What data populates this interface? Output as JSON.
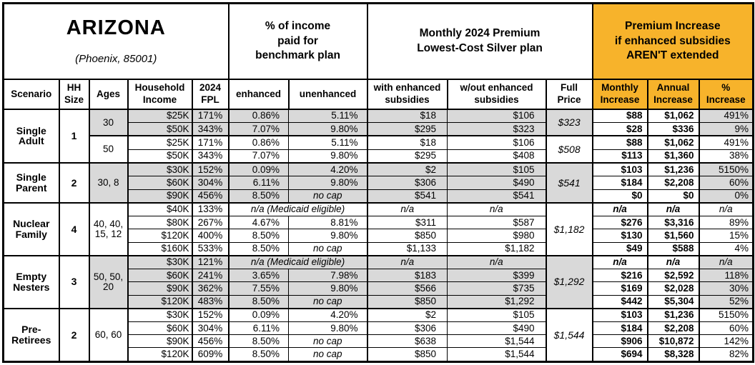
{
  "title": {
    "state": "ARIZONA",
    "subtitle": "(Phoenix, 85001)"
  },
  "groups": {
    "benchmark": "% of income\npaid for\nbenchmark plan",
    "premium": "Monthly 2024 Premium\nLowest-Cost Silver plan",
    "increase": "Premium Increase\nif enhanced subsidies\nAREN'T extended"
  },
  "columns": {
    "scenario": "Scenario",
    "hh_size": "HH\nSize",
    "ages": "Ages",
    "income": "Household\nIncome",
    "fpl": "2024\nFPL",
    "enhanced": "enhanced",
    "unenhanced": "unenhanced",
    "with_sub": "with enhanced\nsubsidies",
    "without_sub": "w/out enhanced\nsubsidies",
    "full_price": "Full\nPrice",
    "monthly": "Monthly\nIncrease",
    "annual": "Annual\nIncrease",
    "pct": "%\nIncrease"
  },
  "colors": {
    "accent_orange": "#F7B32B",
    "shade_gray": "#D9D9D9",
    "border": "#000000"
  },
  "blocks": [
    {
      "scenario": "Single\nAdult",
      "hh_size": "1",
      "sub_blocks": [
        {
          "ages": "30",
          "shaded": true,
          "full_price": "$323",
          "rows": [
            {
              "income": "$25K",
              "fpl": "171%",
              "enhanced": "0.86%",
              "unenhanced": "5.11%",
              "with_sub": "$18",
              "without_sub": "$106",
              "monthly": "$88",
              "annual": "$1,062",
              "pct": "491%"
            },
            {
              "income": "$50K",
              "fpl": "343%",
              "enhanced": "7.07%",
              "unenhanced": "9.80%",
              "with_sub": "$295",
              "without_sub": "$323",
              "monthly": "$28",
              "annual": "$336",
              "pct": "9%"
            }
          ]
        },
        {
          "ages": "50",
          "shaded": false,
          "full_price": "$508",
          "rows": [
            {
              "income": "$25K",
              "fpl": "171%",
              "enhanced": "0.86%",
              "unenhanced": "5.11%",
              "with_sub": "$18",
              "without_sub": "$106",
              "monthly": "$88",
              "annual": "$1,062",
              "pct": "491%"
            },
            {
              "income": "$50K",
              "fpl": "343%",
              "enhanced": "7.07%",
              "unenhanced": "9.80%",
              "with_sub": "$295",
              "without_sub": "$408",
              "monthly": "$113",
              "annual": "$1,360",
              "pct": "38%"
            }
          ]
        }
      ]
    },
    {
      "scenario": "Single\nParent",
      "hh_size": "2",
      "sub_blocks": [
        {
          "ages": "30, 8",
          "shaded": true,
          "full_price": "$541",
          "rows": [
            {
              "income": "$30K",
              "fpl": "152%",
              "enhanced": "0.09%",
              "unenhanced": "4.20%",
              "with_sub": "$2",
              "without_sub": "$105",
              "monthly": "$103",
              "annual": "$1,236",
              "pct": "5150%"
            },
            {
              "income": "$60K",
              "fpl": "304%",
              "enhanced": "6.11%",
              "unenhanced": "9.80%",
              "with_sub": "$306",
              "without_sub": "$490",
              "monthly": "$184",
              "annual": "$2,208",
              "pct": "60%"
            },
            {
              "income": "$90K",
              "fpl": "456%",
              "enhanced": "8.50%",
              "unenhanced": "no cap",
              "with_sub": "$541",
              "without_sub": "$541",
              "monthly": "$0",
              "annual": "$0",
              "pct": "0%"
            }
          ]
        }
      ]
    },
    {
      "scenario": "Nuclear\nFamily",
      "hh_size": "4",
      "sub_blocks": [
        {
          "ages": "40, 40,\n15, 12",
          "shaded": false,
          "full_price": "$1,182",
          "rows": [
            {
              "income": "$40K",
              "fpl": "133%",
              "medicaid": "n/a (Medicaid eligible)",
              "with_sub": "n/a",
              "without_sub": "n/a",
              "monthly": "n/a",
              "annual": "n/a",
              "pct": "n/a"
            },
            {
              "income": "$80K",
              "fpl": "267%",
              "enhanced": "4.67%",
              "unenhanced": "8.81%",
              "with_sub": "$311",
              "without_sub": "$587",
              "monthly": "$276",
              "annual": "$3,316",
              "pct": "89%"
            },
            {
              "income": "$120K",
              "fpl": "400%",
              "enhanced": "8.50%",
              "unenhanced": "9.80%",
              "with_sub": "$850",
              "without_sub": "$980",
              "monthly": "$130",
              "annual": "$1,560",
              "pct": "15%"
            },
            {
              "income": "$160K",
              "fpl": "533%",
              "enhanced": "8.50%",
              "unenhanced": "no cap",
              "with_sub": "$1,133",
              "without_sub": "$1,182",
              "monthly": "$49",
              "annual": "$588",
              "pct": "4%"
            }
          ]
        }
      ]
    },
    {
      "scenario": "Empty\nNesters",
      "hh_size": "3",
      "sub_blocks": [
        {
          "ages": "50, 50,\n20",
          "shaded": true,
          "full_price": "$1,292",
          "rows": [
            {
              "income": "$30K",
              "fpl": "121%",
              "medicaid": "n/a (Medicaid eligible)",
              "with_sub": "n/a",
              "without_sub": "n/a",
              "monthly": "n/a",
              "annual": "n/a",
              "pct": "n/a"
            },
            {
              "income": "$60K",
              "fpl": "241%",
              "enhanced": "3.65%",
              "unenhanced": "7.98%",
              "with_sub": "$183",
              "without_sub": "$399",
              "monthly": "$216",
              "annual": "$2,592",
              "pct": "118%"
            },
            {
              "income": "$90K",
              "fpl": "362%",
              "enhanced": "7.55%",
              "unenhanced": "9.80%",
              "with_sub": "$566",
              "without_sub": "$735",
              "monthly": "$169",
              "annual": "$2,028",
              "pct": "30%"
            },
            {
              "income": "$120K",
              "fpl": "483%",
              "enhanced": "8.50%",
              "unenhanced": "no cap",
              "with_sub": "$850",
              "without_sub": "$1,292",
              "monthly": "$442",
              "annual": "$5,304",
              "pct": "52%"
            }
          ]
        }
      ]
    },
    {
      "scenario": "Pre-\nRetirees",
      "hh_size": "2",
      "sub_blocks": [
        {
          "ages": "60, 60",
          "shaded": false,
          "full_price": "$1,544",
          "rows": [
            {
              "income": "$30K",
              "fpl": "152%",
              "enhanced": "0.09%",
              "unenhanced": "4.20%",
              "with_sub": "$2",
              "without_sub": "$105",
              "monthly": "$103",
              "annual": "$1,236",
              "pct": "5150%"
            },
            {
              "income": "$60K",
              "fpl": "304%",
              "enhanced": "6.11%",
              "unenhanced": "9.80%",
              "with_sub": "$306",
              "without_sub": "$490",
              "monthly": "$184",
              "annual": "$2,208",
              "pct": "60%"
            },
            {
              "income": "$90K",
              "fpl": "456%",
              "enhanced": "8.50%",
              "unenhanced": "no cap",
              "with_sub": "$638",
              "without_sub": "$1,544",
              "monthly": "$906",
              "annual": "$10,872",
              "pct": "142%"
            },
            {
              "income": "$120K",
              "fpl": "609%",
              "enhanced": "8.50%",
              "unenhanced": "no cap",
              "with_sub": "$850",
              "without_sub": "$1,544",
              "monthly": "$694",
              "annual": "$8,328",
              "pct": "82%"
            }
          ]
        }
      ]
    }
  ]
}
